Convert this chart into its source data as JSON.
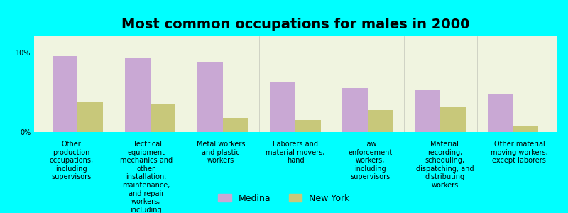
{
  "title": "Most common occupations for males in 2000",
  "background_color": "#00FFFF",
  "plot_bg_color": "#F0F4E0",
  "categories": [
    "Other\nproduction\noccupations,\nincluding\nsupervisors",
    "Electrical\nequipment\nmechanics and\nother\ninstallation,\nmaintenance,\nand repair\nworkers,\nincluding\nsupervisors",
    "Metal workers\nand plastic\nworkers",
    "Laborers and\nmaterial movers,\nhand",
    "Law\nenforcement\nworkers,\nincluding\nsupervisors",
    "Material\nrecording,\nscheduling,\ndispatching, and\ndistributing\nworkers",
    "Other material\nmoving workers,\nexcept laborers"
  ],
  "medina_values": [
    9.5,
    9.3,
    8.8,
    6.2,
    5.5,
    5.2,
    4.8
  ],
  "newyork_values": [
    3.8,
    3.5,
    1.8,
    1.5,
    2.8,
    3.2,
    0.8
  ],
  "medina_color": "#C9A8D4",
  "newyork_color": "#C8C87A",
  "ylim": [
    0,
    12
  ],
  "yticks": [
    0,
    10
  ],
  "ytick_labels": [
    "0%",
    "10%"
  ],
  "legend_medina": "Medina",
  "legend_newyork": "New York",
  "bar_width": 0.35,
  "title_fontsize": 14,
  "tick_fontsize": 7,
  "legend_fontsize": 9
}
